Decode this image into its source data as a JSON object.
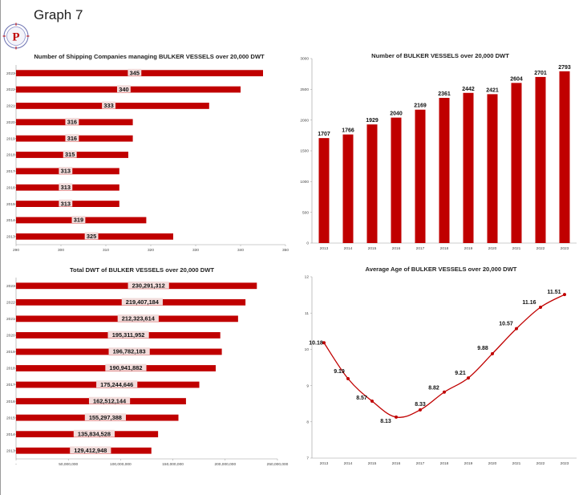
{
  "page": {
    "title": "Graph 7",
    "logo_letter": "P"
  },
  "colors": {
    "bar": "#c00000",
    "line": "#c00000",
    "label_bg": "#f2dcdb",
    "axis": "#9a9a9a"
  },
  "chart_data": [
    {
      "id": "companies",
      "type": "bar",
      "orientation": "horizontal",
      "title": "Number of Shipping Companies managing BULKER VESSELS over 20,000 DWT",
      "categories": [
        "2023",
        "2022",
        "2021",
        "2020",
        "2019",
        "2018",
        "2017",
        "2016",
        "2015",
        "2014",
        "2013"
      ],
      "values": [
        345,
        340,
        333,
        316,
        316,
        315,
        313,
        313,
        313,
        319,
        325
      ],
      "labels": [
        "345",
        "340",
        "333",
        "316",
        "316",
        "315",
        "313",
        "313",
        "313",
        "319",
        "325"
      ],
      "xlim": [
        290,
        350
      ],
      "xticks": [
        "290",
        "300",
        "310",
        "320",
        "330",
        "340",
        "350"
      ]
    },
    {
      "id": "vessels",
      "type": "bar",
      "orientation": "vertical",
      "title": "Number of BULKER VESSELS over 20,000 DWT",
      "categories": [
        "2013",
        "2014",
        "2015",
        "2016",
        "2017",
        "2018",
        "2019",
        "2020",
        "2021",
        "2022",
        "2023"
      ],
      "values": [
        1707,
        1766,
        1929,
        2040,
        2169,
        2361,
        2442,
        2421,
        2604,
        2701,
        2793
      ],
      "labels": [
        "1707",
        "1766",
        "1929",
        "2040",
        "2169",
        "2361",
        "2442",
        "2421",
        "2604",
        "2701",
        "2793"
      ],
      "ylim": [
        0,
        3000
      ],
      "yticks": [
        "0",
        "500",
        "1000",
        "1500",
        "2000",
        "2500",
        "3000"
      ]
    },
    {
      "id": "dwt",
      "type": "bar",
      "orientation": "horizontal",
      "title": "Total DWT of BULKER VESSELS over 20,000 DWT",
      "categories": [
        "2023",
        "2022",
        "2021",
        "2020",
        "2019",
        "2018",
        "2017",
        "2016",
        "2015",
        "2014",
        "2013"
      ],
      "values": [
        230291312,
        219407184,
        212323614,
        195311952,
        196782183,
        190941882,
        175244646,
        162512144,
        155297388,
        135834528,
        129412948
      ],
      "labels": [
        "230,291,312",
        "219,407,184",
        "212,323,614",
        "195,311,952",
        "196,782,183",
        "190,941,882",
        "175,244,646",
        "162,512,144",
        "155,297,388",
        "135,834,528",
        "129,412,948"
      ],
      "xlim": [
        0,
        250000000
      ],
      "xticks": [
        "-",
        "50,000,000",
        "100,000,000",
        "150,000,000",
        "200,000,000",
        "250,000,000"
      ]
    },
    {
      "id": "age",
      "type": "line",
      "title": "Average Age of BULKER VESSELS over 20,000 DWT",
      "categories": [
        "2013",
        "2014",
        "2015",
        "2016",
        "2017",
        "2018",
        "2019",
        "2020",
        "2021",
        "2022",
        "2023"
      ],
      "values": [
        10.18,
        9.19,
        8.57,
        8.13,
        8.33,
        8.82,
        9.21,
        9.88,
        10.57,
        11.16,
        11.51
      ],
      "labels": [
        "10.18",
        "9.19",
        "8.57",
        "8.13",
        "8.33",
        "8.82",
        "9.21",
        "9.88",
        "10.57",
        "11.16",
        "11.51"
      ],
      "ylim": [
        7,
        12
      ],
      "yticks": [
        "7",
        "8",
        "9",
        "10",
        "11",
        "12"
      ]
    }
  ]
}
